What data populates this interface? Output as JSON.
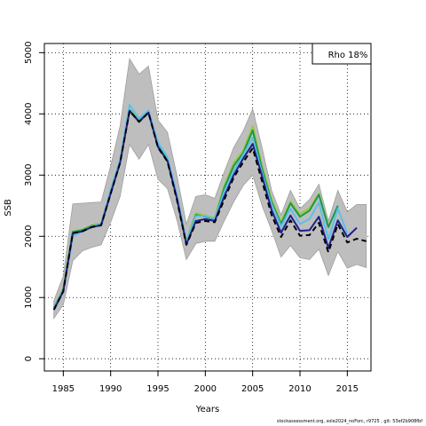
{
  "chart_data": {
    "type": "line",
    "xlabel": "Years",
    "ylabel": "SSB",
    "xlim": [
      1983,
      2017.5
    ],
    "ylim": [
      -200,
      5150
    ],
    "x_ticks": [
      1985,
      1990,
      1995,
      2000,
      2005,
      2010,
      2015
    ],
    "y_ticks": [
      0,
      1000,
      2000,
      3000,
      4000,
      5000
    ],
    "grid": "dotted",
    "legend": {
      "position": "top-right",
      "text": "Rho 18%"
    },
    "band": {
      "years": [
        1984,
        1985,
        1986,
        1987,
        1988,
        1989,
        1990,
        1991,
        1992,
        1993,
        1994,
        1995,
        1996,
        1997,
        1998,
        1999,
        2000,
        2001,
        2002,
        2003,
        2004,
        2005,
        2006,
        2007,
        2008,
        2009,
        2010,
        2011,
        2012,
        2013,
        2014,
        2015,
        2016,
        2017
      ],
      "upper": [
        950,
        1350,
        2530,
        2540,
        2550,
        2560,
        3150,
        3800,
        4900,
        4650,
        4780,
        3900,
        3700,
        3000,
        2200,
        2650,
        2680,
        2620,
        3050,
        3450,
        3720,
        4080,
        3450,
        2750,
        2350,
        2750,
        2450,
        2600,
        2850,
        2250,
        2750,
        2400,
        2520,
        2520
      ],
      "lower": [
        660,
        880,
        1600,
        1760,
        1820,
        1860,
        2230,
        2650,
        3500,
        3260,
        3500,
        2930,
        2780,
        2270,
        1620,
        1880,
        1920,
        1920,
        2250,
        2560,
        2830,
        3000,
        2500,
        2100,
        1660,
        1850,
        1650,
        1620,
        1790,
        1360,
        1750,
        1480,
        1540,
        1490
      ]
    },
    "series": [
      {
        "color": "#000000",
        "dashed": true,
        "x": [
          1984,
          1985,
          1986,
          1987,
          1988,
          1989,
          1990,
          1991,
          1992,
          1993,
          1994,
          1995,
          1996,
          1997,
          1998,
          1999,
          2000,
          2001,
          2002,
          2003,
          2004,
          2005,
          2006,
          2007,
          2008,
          2009,
          2010,
          2011,
          2012,
          2013,
          2014,
          2015,
          2016,
          2017
        ],
        "y": [
          800,
          1100,
          2050,
          2080,
          2150,
          2180,
          2700,
          3200,
          4050,
          3870,
          4020,
          3450,
          3220,
          2600,
          1860,
          2220,
          2250,
          2230,
          2600,
          2960,
          3210,
          3440,
          2900,
          2350,
          1990,
          2260,
          2010,
          2020,
          2220,
          1740,
          2200,
          1900,
          1960,
          1920
        ]
      },
      {
        "color": "#1f1f8c",
        "x": [
          1984,
          1985,
          1986,
          1987,
          1988,
          1989,
          1990,
          1991,
          1992,
          1993,
          1994,
          1995,
          1996,
          1997,
          1998,
          1999,
          2000,
          2001,
          2002,
          2003,
          2004,
          2005,
          2006,
          2007,
          2008,
          2009,
          2010,
          2011,
          2012,
          2013,
          2014,
          2015,
          2016
        ],
        "y": [
          800,
          1100,
          2050,
          2080,
          2150,
          2180,
          2700,
          3200,
          4050,
          3870,
          4020,
          3460,
          3230,
          2620,
          1870,
          2250,
          2280,
          2250,
          2650,
          3000,
          3270,
          3510,
          2980,
          2430,
          2060,
          2340,
          2090,
          2100,
          2320,
          1810,
          2260,
          1990,
          2140
        ]
      },
      {
        "color": "#5bc0e8",
        "x": [
          1984,
          1985,
          1986,
          1987,
          1988,
          1989,
          1990,
          1991,
          1992,
          1993,
          1994,
          1995,
          1996,
          1997,
          1998,
          1999,
          2000,
          2001,
          2002,
          2003,
          2004,
          2005,
          2006,
          2007,
          2008,
          2009,
          2010,
          2011,
          2012,
          2013,
          2014,
          2015
        ],
        "y": [
          820,
          1120,
          2000,
          2080,
          2160,
          2200,
          2760,
          3250,
          4150,
          3920,
          4060,
          3530,
          3290,
          2680,
          1910,
          2330,
          2330,
          2290,
          2730,
          3070,
          3330,
          3610,
          3030,
          2520,
          2160,
          2450,
          2200,
          2280,
          2550,
          1950,
          2450,
          2050
        ]
      },
      {
        "color": "#1a9850",
        "x": [
          1984,
          1985,
          1986,
          1987,
          1988,
          1989,
          1990,
          1991,
          1992,
          1993,
          1994,
          1995,
          1996,
          1997,
          1998,
          1999,
          2000,
          2001,
          2002,
          2003,
          2004,
          2005,
          2006,
          2007,
          2008,
          2009,
          2010,
          2011,
          2012,
          2013,
          2014
        ],
        "y": [
          830,
          1130,
          2070,
          2100,
          2170,
          2200,
          2740,
          3230,
          4060,
          3880,
          4040,
          3500,
          3260,
          2650,
          1900,
          2350,
          2320,
          2280,
          2790,
          3150,
          3360,
          3730,
          3100,
          2560,
          2200,
          2540,
          2320,
          2420,
          2680,
          2150,
          2500
        ]
      },
      {
        "color": "#9acd32",
        "x": [
          1984,
          1985,
          1986,
          1987,
          1988,
          1989,
          1990,
          1991,
          1992,
          1993,
          1994,
          1995,
          1996,
          1997,
          1998,
          1999,
          2000,
          2001,
          2002,
          2003,
          2004,
          2005,
          2006,
          2007,
          2008,
          2009,
          2010,
          2011,
          2012,
          2013
        ],
        "y": [
          840,
          1140,
          2080,
          2110,
          2180,
          2210,
          2750,
          3240,
          4070,
          3890,
          4050,
          3520,
          3280,
          2670,
          1920,
          2380,
          2340,
          2300,
          2830,
          3200,
          3400,
          3800,
          3150,
          2600,
          2230,
          2570,
          2360,
          2460,
          2700,
          2170
        ]
      }
    ]
  },
  "footer": "stockassessment.org, sole2024_noForc, r9725 , git: 53ef2b908fbf"
}
